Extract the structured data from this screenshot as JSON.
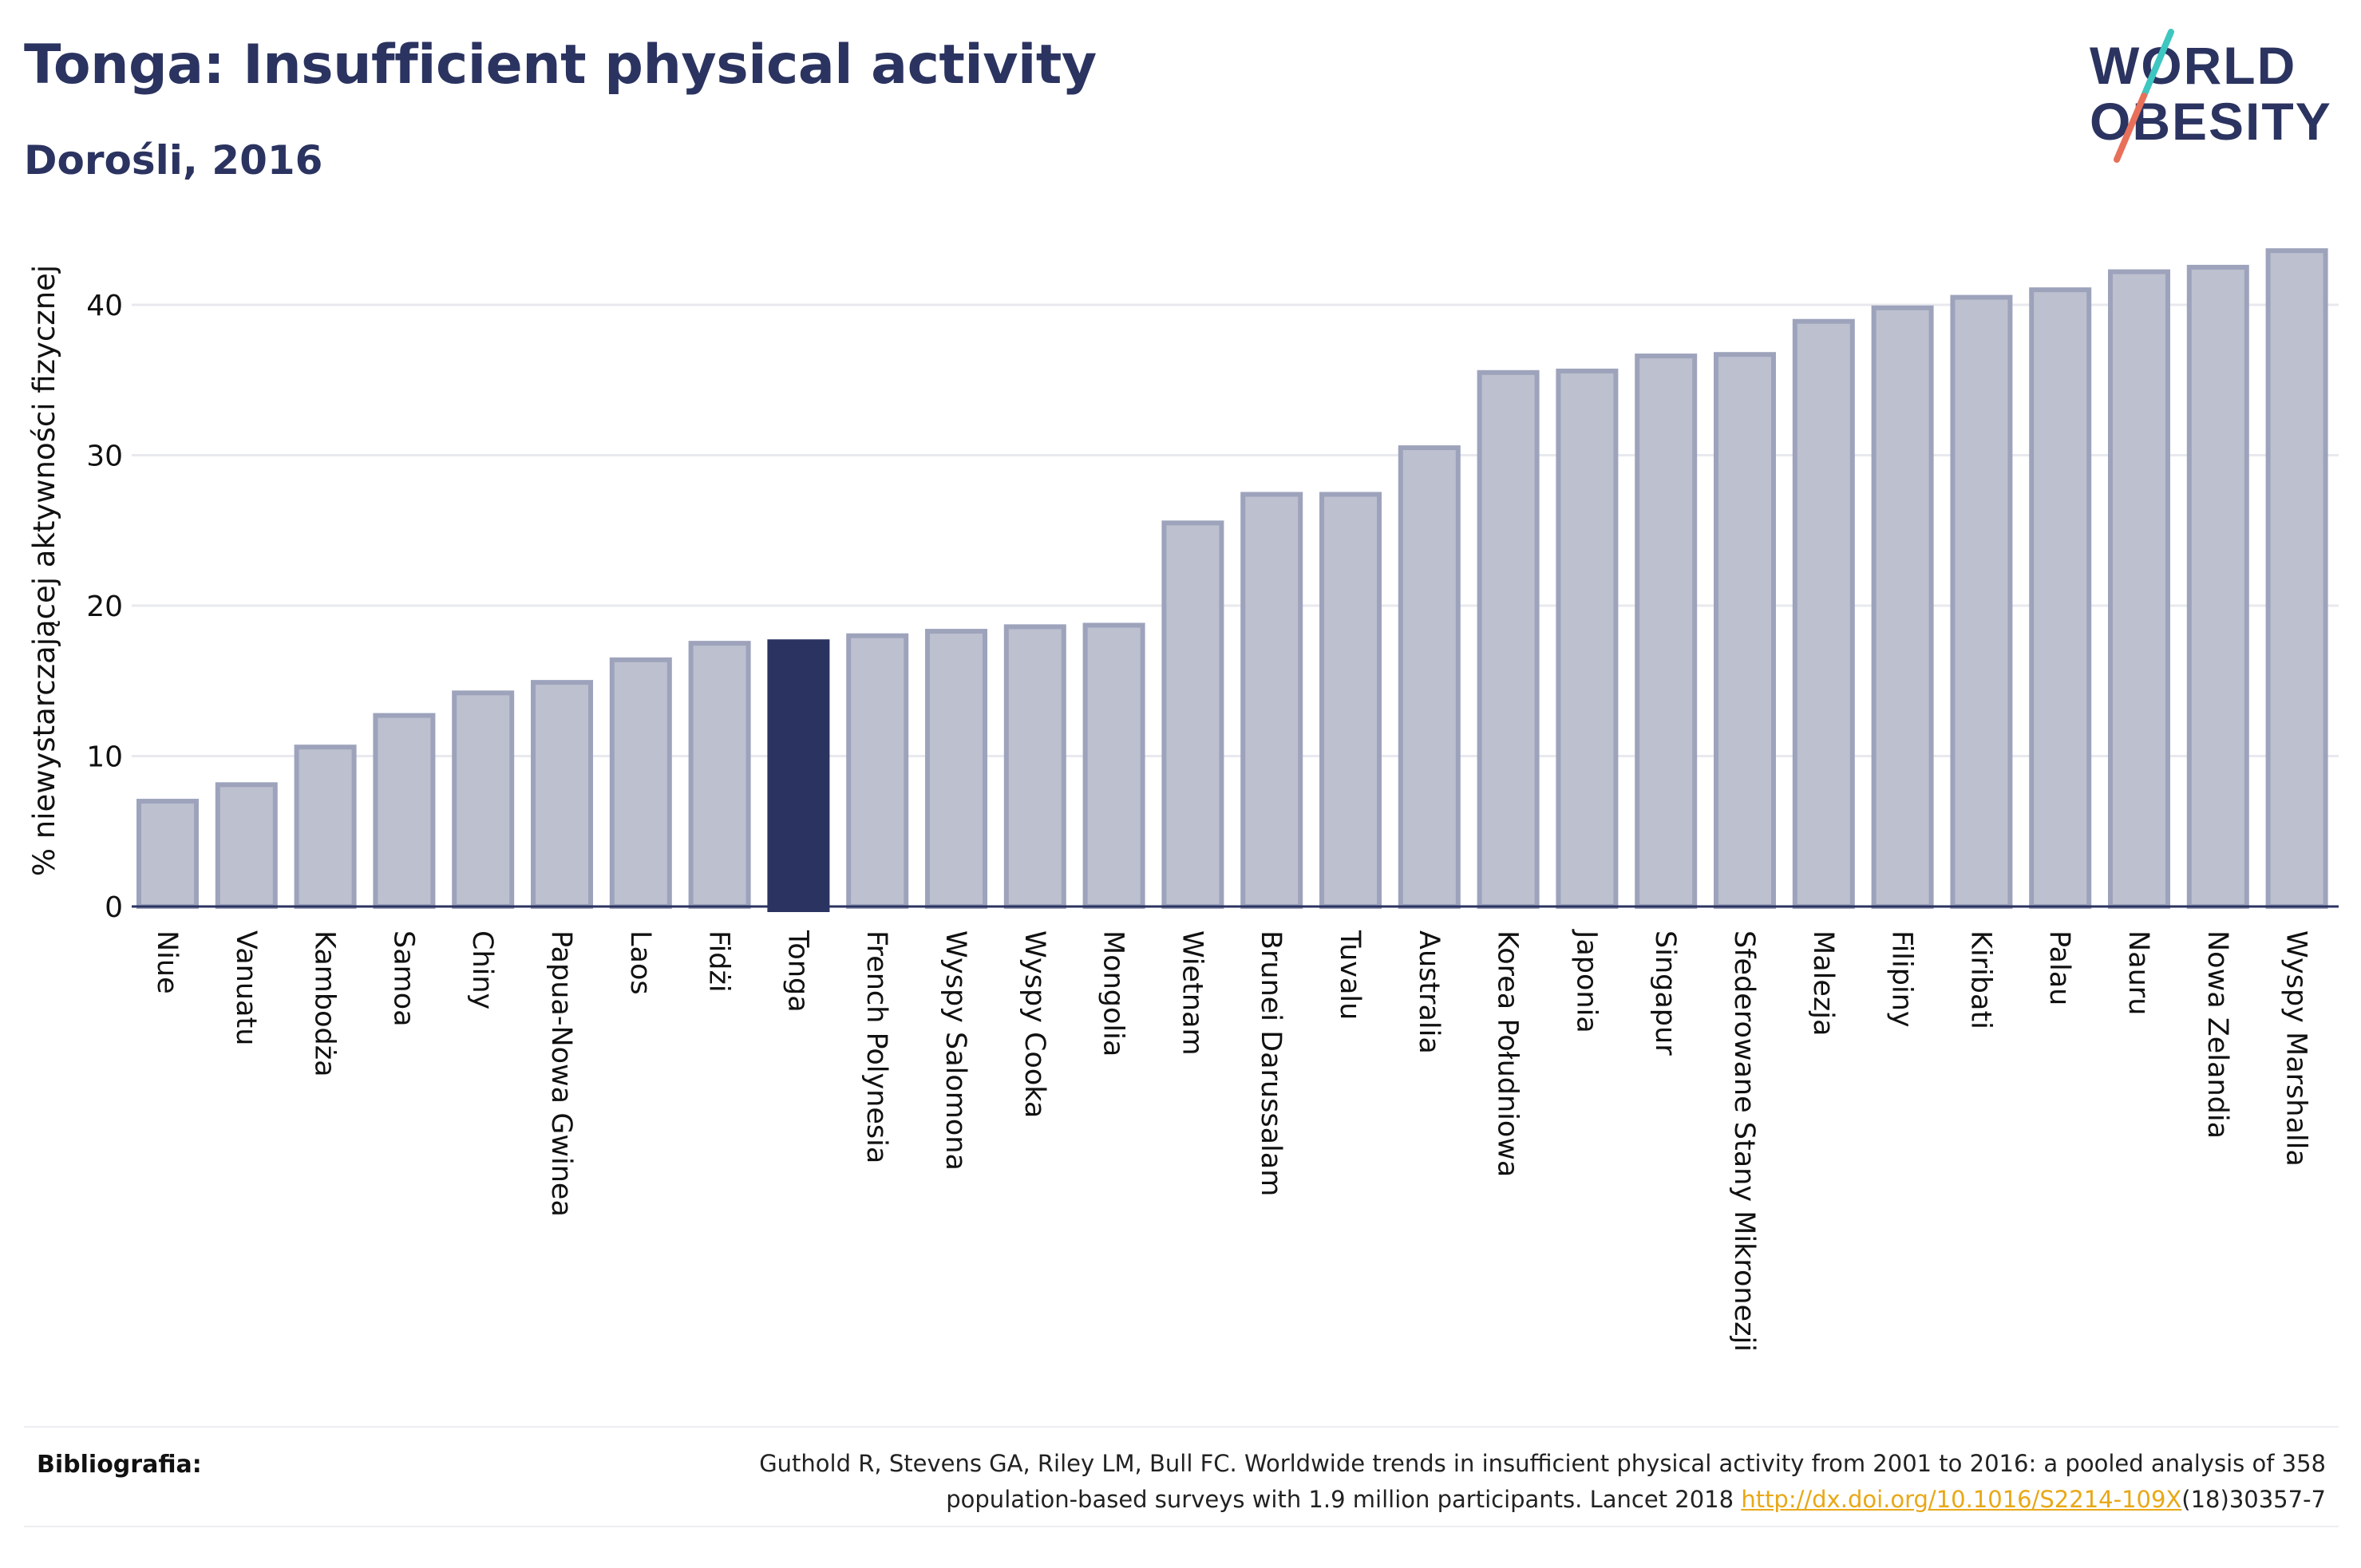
{
  "header": {
    "title": "Tonga: Insufficient physical activity",
    "subtitle": "Dorośli, 2016"
  },
  "logo": {
    "line1": "WORLD",
    "line2": "OBESITY",
    "colors": {
      "text": "#2b3360",
      "slash_teal": "#3ec6c0",
      "slash_coral": "#e8705a"
    }
  },
  "chart_data": {
    "type": "bar",
    "title": "",
    "xlabel": "",
    "ylabel": "% niewystarczającej aktywności fizycznej",
    "ylim": [
      0,
      45
    ],
    "yticks": [
      0,
      10,
      20,
      30,
      40
    ],
    "grid": true,
    "highlight": "Tonga",
    "colors": {
      "bar": "#bcc0cf",
      "bar_border": "#9ea3bc",
      "highlight": "#2b3360"
    },
    "categories": [
      "Niue",
      "Vanuatu",
      "Kambodża",
      "Samoa",
      "Chiny",
      "Papua-Nowa Gwinea",
      "Laos",
      "Fidżi",
      "Tonga",
      "French Polynesia",
      "Wyspy Salomona",
      "Wyspy Cooka",
      "Mongolia",
      "Wietnam",
      "Brunei Darussalam",
      "Tuvalu",
      "Australia",
      "Korea Południowa",
      "Japonia",
      "Singapur",
      "Sfederowane Stany Mikronezji",
      "Malezja",
      "Filipiny",
      "Kiribati",
      "Palau",
      "Nauru",
      "Nowa Zelandia",
      "Wyspy Marshalla"
    ],
    "values": [
      7.0,
      8.1,
      10.6,
      12.7,
      14.2,
      14.9,
      16.4,
      17.5,
      17.6,
      18.0,
      18.3,
      18.6,
      18.7,
      25.5,
      27.4,
      27.4,
      30.5,
      35.5,
      35.6,
      36.6,
      36.7,
      38.9,
      39.8,
      40.5,
      41.0,
      42.2,
      42.5,
      43.6
    ]
  },
  "footer": {
    "bibliography_label": "Bibliografia:",
    "citation_line1": "Guthold R, Stevens GA, Riley LM, Bull FC. Worldwide trends in insufficient physical activity from 2001 to 2016: a pooled analysis of 358",
    "citation_line2_pre": "population-based surveys with 1.9 million participants. Lancet 2018 ",
    "citation_link": "http://dx.doi.org/10.1016/S2214-109X",
    "citation_line2_post": "(18)30357-7"
  }
}
